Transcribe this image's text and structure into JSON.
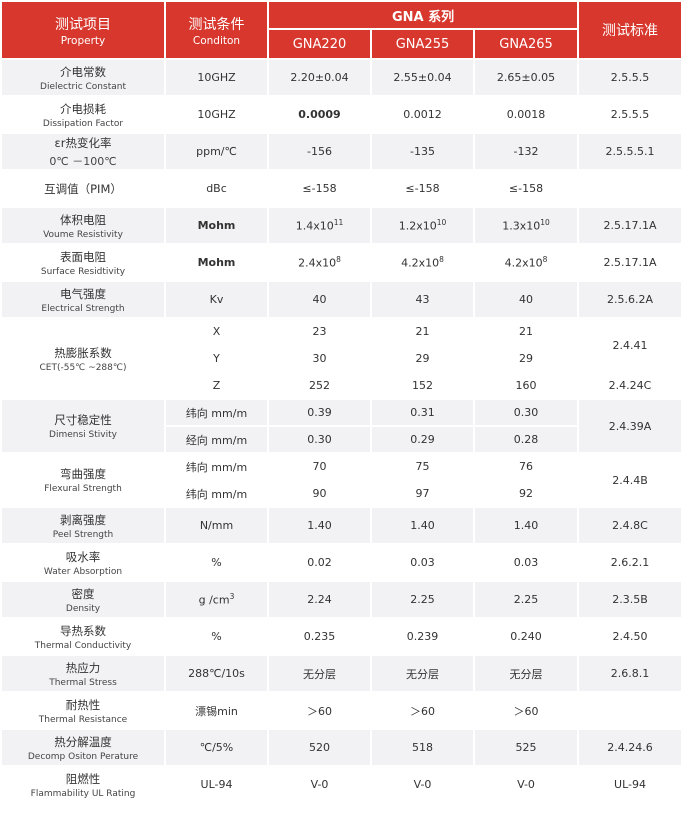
{
  "header": {
    "property_cn": "测试项目",
    "property_en": "Property",
    "condition_cn": "测试条件",
    "condition_en": "Conditon",
    "series": "GNA 系列",
    "models": [
      "GNA220",
      "GNA255",
      "GNA265"
    ],
    "standard": "测试标准"
  },
  "colors": {
    "header_bg": "#d7372d",
    "row_alt_bg": "#f2f2f4"
  },
  "rows": [
    {
      "cn": "介电常数",
      "en": "Dielectric Constant",
      "sub": [
        {
          "cond": "10GHZ",
          "values": [
            "2.20±0.04",
            "2.55±0.04",
            "2.65±0.05"
          ]
        }
      ],
      "standards": [
        {
          "text": "2.5.5.5",
          "span": 1
        }
      ]
    },
    {
      "cn": "介电损耗",
      "en": "Dissipation Factor",
      "sub": [
        {
          "cond": "10GHZ",
          "values": [
            "0.0009",
            "0.0012",
            "0.0018"
          ],
          "bold_first": true
        }
      ],
      "standards": [
        {
          "text": "2.5.5.5",
          "span": 1
        }
      ]
    },
    {
      "cn": "εr热变化率",
      "en": "0℃ －100℃",
      "en_large": true,
      "sub": [
        {
          "cond": "ppm/℃",
          "values": [
            "-156",
            "-135",
            "-132"
          ]
        }
      ],
      "standards": [
        {
          "text": "2.5.5.5.1",
          "span": 1
        }
      ]
    },
    {
      "cn": "互调值（PIM）",
      "en": "",
      "sub": [
        {
          "cond": "dBc",
          "values": [
            "≤-158",
            "≤-158",
            "≤-158"
          ]
        }
      ],
      "standards": [
        {
          "text": "",
          "span": 1
        }
      ]
    },
    {
      "cn": "体积电阻",
      "en": "Voume Resistivity",
      "sub": [
        {
          "cond": "Mohm",
          "cond_bold": true,
          "values": [
            {
              "base": "1.4x10",
              "exp": "11"
            },
            {
              "base": "1.2x10",
              "exp": "10"
            },
            {
              "base": "1.3x10",
              "exp": "10"
            }
          ]
        }
      ],
      "standards": [
        {
          "text": "2.5.17.1A",
          "span": 1
        }
      ]
    },
    {
      "cn": "表面电阻",
      "en": "Surface Residtivity",
      "sub": [
        {
          "cond": "Mohm",
          "cond_bold": true,
          "values": [
            {
              "base": "2.4x10",
              "exp": "8"
            },
            {
              "base": "4.2x10",
              "exp": "8"
            },
            {
              "base": "4.2x10",
              "exp": "8"
            }
          ]
        }
      ],
      "standards": [
        {
          "text": "2.5.17.1A",
          "span": 1
        }
      ]
    },
    {
      "cn": "电气强度",
      "en": "Electrical Strength",
      "sub": [
        {
          "cond": "Kv",
          "values": [
            "40",
            "43",
            "40"
          ]
        }
      ],
      "standards": [
        {
          "text": "2.5.6.2A",
          "span": 1
        }
      ]
    },
    {
      "cn": "热膨胀系数",
      "en": "CET(-55℃ ~288℃)",
      "sub": [
        {
          "cond": "X",
          "values": [
            "23",
            "21",
            "21"
          ]
        },
        {
          "cond": "Y",
          "values": [
            "30",
            "29",
            "29"
          ]
        },
        {
          "cond": "Z",
          "values": [
            "252",
            "152",
            "160"
          ]
        }
      ],
      "standards": [
        {
          "text": "2.4.41",
          "span": 2
        },
        {
          "text": "2.4.24C",
          "span": 1
        }
      ]
    },
    {
      "cn": "尺寸稳定性",
      "en": "Dimensi Stivity",
      "sub": [
        {
          "cond": "纬向 mm/m",
          "values": [
            "0.39",
            "0.31",
            "0.30"
          ]
        },
        {
          "cond": "经向 mm/m",
          "values": [
            "0.30",
            "0.29",
            "0.28"
          ]
        }
      ],
      "standards": [
        {
          "text": "2.4.39A",
          "span": 2
        }
      ]
    },
    {
      "cn": "弯曲强度",
      "en": "Flexural Strength",
      "sub": [
        {
          "cond": "纬向 mm/m",
          "values": [
            "70",
            "75",
            "76"
          ]
        },
        {
          "cond": "纬向 mm/m",
          "values": [
            "90",
            "97",
            "92"
          ]
        }
      ],
      "standards": [
        {
          "text": "2.4.4B",
          "span": 2
        }
      ]
    },
    {
      "cn": "剥离强度",
      "en": "Peel Strength",
      "sub": [
        {
          "cond": "N/mm",
          "values": [
            "1.40",
            "1.40",
            "1.40"
          ]
        }
      ],
      "standards": [
        {
          "text": "2.4.8C",
          "span": 1
        }
      ]
    },
    {
      "cn": "吸水率",
      "en": "Water Absorption",
      "sub": [
        {
          "cond": "%",
          "values": [
            "0.02",
            "0.03",
            "0.03"
          ]
        }
      ],
      "standards": [
        {
          "text": "2.6.2.1",
          "span": 1
        }
      ]
    },
    {
      "cn": "密度",
      "en": "Density",
      "sub": [
        {
          "cond": {
            "base": "g /cm",
            "exp": "3"
          },
          "values": [
            "2.24",
            "2.25",
            "2.25"
          ]
        }
      ],
      "standards": [
        {
          "text": "2.3.5B",
          "span": 1
        }
      ]
    },
    {
      "cn": "导热系数",
      "en": "Thermal Conductivity",
      "sub": [
        {
          "cond": "%",
          "values": [
            "0.235",
            "0.239",
            "0.240"
          ]
        }
      ],
      "standards": [
        {
          "text": "2.4.50",
          "span": 1
        }
      ]
    },
    {
      "cn": "热应力",
      "en": "Thermal Stress",
      "sub": [
        {
          "cond": "288℃/10s",
          "values": [
            "无分层",
            "无分层",
            "无分层"
          ]
        }
      ],
      "standards": [
        {
          "text": "2.6.8.1",
          "span": 1
        }
      ]
    },
    {
      "cn": "耐热性",
      "en": "Thermal Resistance",
      "sub": [
        {
          "cond": "漂锡min",
          "values": [
            "＞60",
            "＞60",
            "＞60"
          ]
        }
      ],
      "standards": [
        {
          "text": "",
          "span": 1
        }
      ]
    },
    {
      "cn": "热分解温度",
      "en": "Decomp Ositon Perature",
      "sub": [
        {
          "cond": "℃/5%",
          "values": [
            "520",
            "518",
            "525"
          ]
        }
      ],
      "standards": [
        {
          "text": "2.4.24.6",
          "span": 1
        }
      ]
    },
    {
      "cn": "阻燃性",
      "en": "Flammability UL Rating",
      "sub": [
        {
          "cond": "UL-94",
          "values": [
            "V-0",
            "V-0",
            "V-0"
          ]
        }
      ],
      "standards": [
        {
          "text": "UL-94",
          "span": 1
        }
      ]
    }
  ]
}
